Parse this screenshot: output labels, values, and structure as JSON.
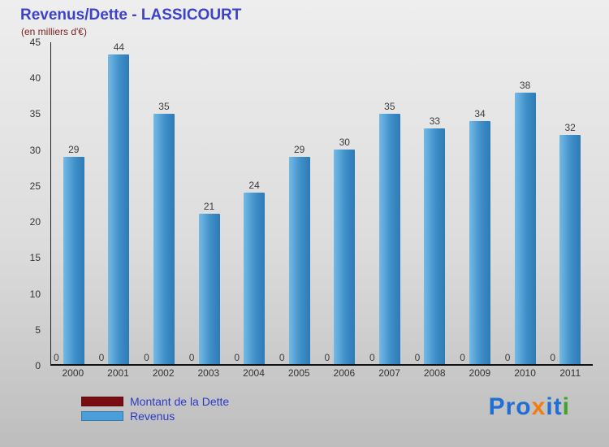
{
  "chart_data": {
    "type": "bar",
    "title": "Revenus/Dette - LASSICOURT",
    "subtitle": "(en milliers d'€)",
    "categories": [
      "2000",
      "2001",
      "2002",
      "2003",
      "2004",
      "2005",
      "2006",
      "2007",
      "2008",
      "2009",
      "2010",
      "2011"
    ],
    "series": [
      {
        "name": "Montant de la Dette",
        "values": [
          0,
          0,
          0,
          0,
          0,
          0,
          0,
          0,
          0,
          0,
          0,
          0
        ],
        "color": "#7a0d12"
      },
      {
        "name": "Revenus",
        "values": [
          29,
          44,
          35,
          21,
          24,
          29,
          30,
          35,
          33,
          34,
          38,
          32
        ],
        "color": "#3f8fc9"
      }
    ],
    "ylim": [
      0,
      45
    ],
    "ytick_step": 5,
    "grid": false,
    "legend_position": "bottom-left"
  },
  "legend": {
    "items": [
      {
        "label": "Montant de la Dette",
        "color": "#7a0d12"
      },
      {
        "label": "Revenus",
        "color": "#4a9ed9"
      }
    ],
    "text_color": "#2b3bc4"
  },
  "logo": {
    "name": "Proxiti",
    "letters": [
      {
        "char": "P",
        "color": "#1f6fd4"
      },
      {
        "char": "r",
        "color": "#1f6fd4"
      },
      {
        "char": "o",
        "color": "#1f6fd4"
      },
      {
        "char": "x",
        "color": "#f07d12"
      },
      {
        "char": "i",
        "color": "#1f6fd4"
      },
      {
        "char": "t",
        "color": "#1f6fd4"
      },
      {
        "char": "i",
        "color": "#3fa32c"
      }
    ]
  }
}
